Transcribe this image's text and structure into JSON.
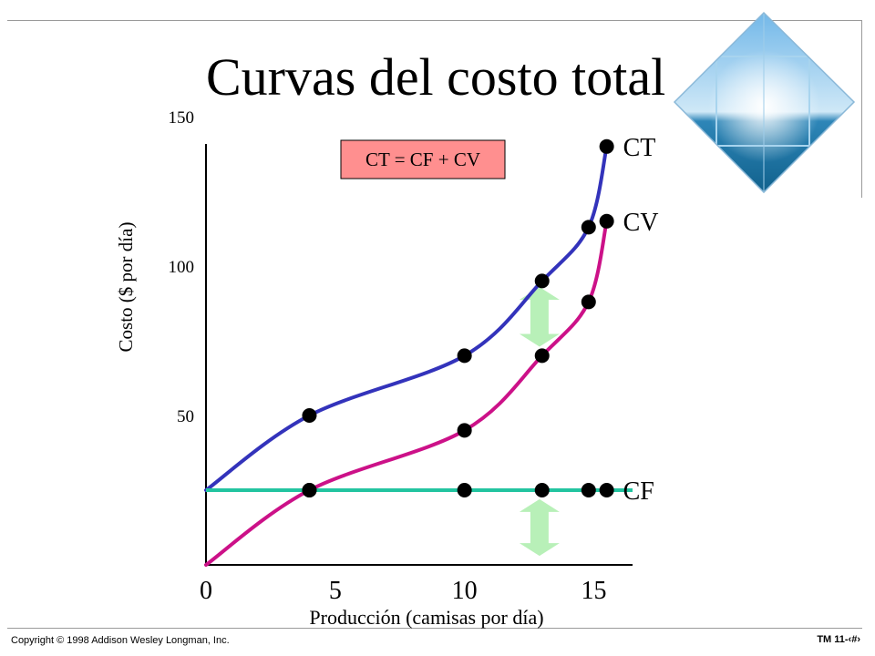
{
  "slide": {
    "title": "Curvas del costo total",
    "copyright": "Copyright © 1998 Addison Wesley Longman, Inc.",
    "slide_number": "TM 11-‹#›"
  },
  "colors": {
    "ct": "#3333bb",
    "cv": "#cc1188",
    "cf": "#22c4a0",
    "formula_box": "#ff8f8f",
    "arrow": "#b8f0b8"
  },
  "chart_data": {
    "type": "line",
    "xlabel": "Producción (camisas por día)",
    "ylabel": "Costo ($ por día)",
    "xlim": [
      0,
      16.5
    ],
    "ylim": [
      0,
      150
    ],
    "x_ticks": [
      "0",
      "5",
      "10",
      "15"
    ],
    "y_ticks": [
      "50",
      "100",
      "150"
    ],
    "annotation": "CT = CF + CV",
    "series": [
      {
        "name": "CT",
        "x": [
          0,
          4,
          10,
          13,
          14.8,
          15.5
        ],
        "values": [
          25,
          50,
          70,
          95,
          113,
          140
        ]
      },
      {
        "name": "CV",
        "x": [
          0,
          4,
          10,
          13,
          14.8,
          15.5
        ],
        "values": [
          0,
          25,
          45,
          70,
          88,
          115
        ]
      },
      {
        "name": "CF",
        "x": [
          0,
          4,
          10,
          13,
          14.8,
          15.5
        ],
        "values": [
          25,
          25,
          25,
          25,
          25,
          25
        ]
      }
    ]
  }
}
